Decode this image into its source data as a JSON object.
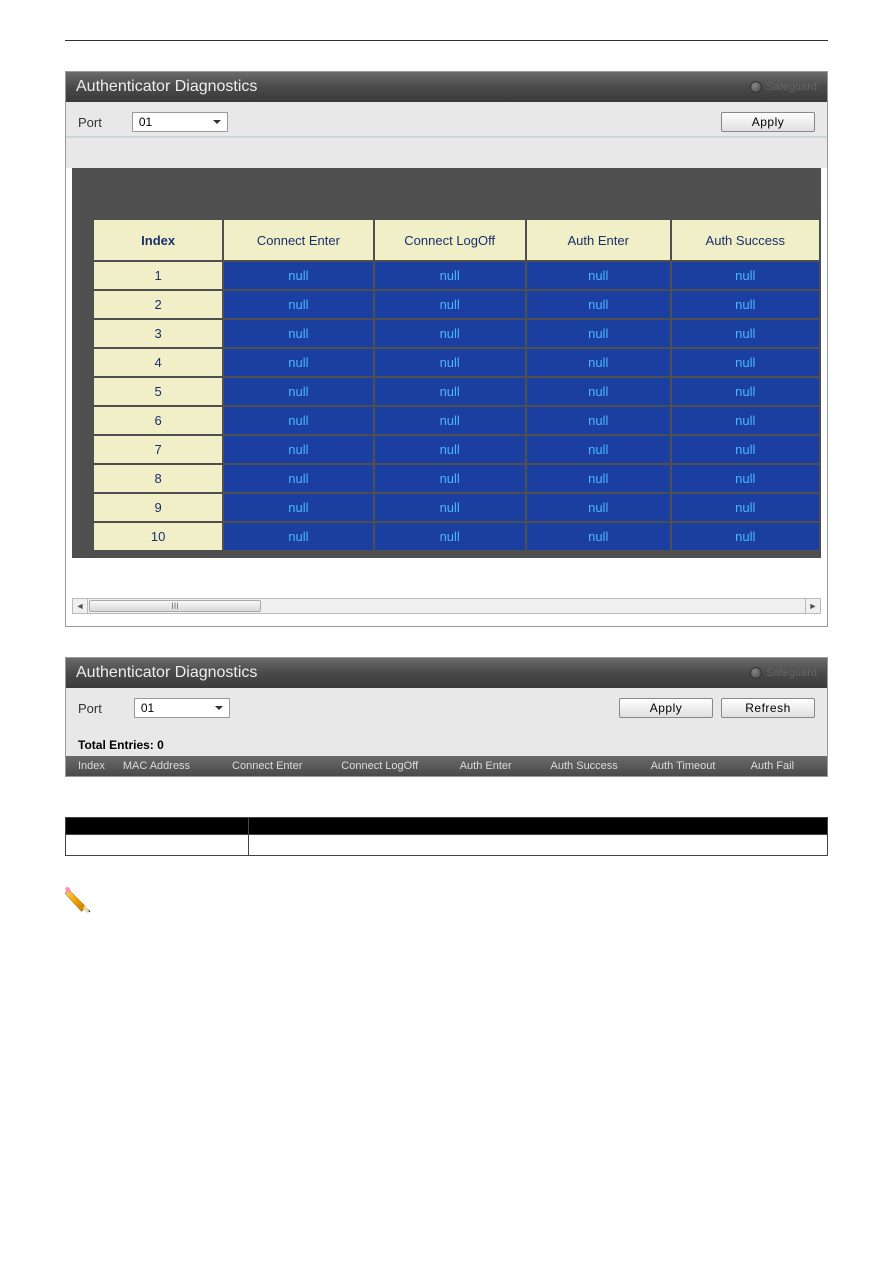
{
  "header": {
    "title": "Authenticator Diagnostics",
    "safeguard_label": "Safeguard"
  },
  "toolbar1": {
    "port_label": "Port",
    "port_value": "01",
    "apply_label": "Apply"
  },
  "diag_table": {
    "header_bg": "#f0efc8",
    "header_fg": "#1b2f6b",
    "cell_bg": "#1b3fa0",
    "cell_fg": "#4bb4ff",
    "col_index": "Index",
    "columns": [
      "Connect Enter",
      "Connect LogOff",
      "Auth Enter",
      "Auth Success"
    ],
    "rows": [
      {
        "index": "1",
        "values": [
          "null",
          "null",
          "null",
          "null"
        ]
      },
      {
        "index": "2",
        "values": [
          "null",
          "null",
          "null",
          "null"
        ]
      },
      {
        "index": "3",
        "values": [
          "null",
          "null",
          "null",
          "null"
        ]
      },
      {
        "index": "4",
        "values": [
          "null",
          "null",
          "null",
          "null"
        ]
      },
      {
        "index": "5",
        "values": [
          "null",
          "null",
          "null",
          "null"
        ]
      },
      {
        "index": "6",
        "values": [
          "null",
          "null",
          "null",
          "null"
        ]
      },
      {
        "index": "7",
        "values": [
          "null",
          "null",
          "null",
          "null"
        ]
      },
      {
        "index": "8",
        "values": [
          "null",
          "null",
          "null",
          "null"
        ]
      },
      {
        "index": "9",
        "values": [
          "null",
          "null",
          "null",
          "null"
        ]
      },
      {
        "index": "10",
        "values": [
          "null",
          "null",
          "null",
          "null"
        ]
      }
    ]
  },
  "scrollbar": {
    "thumb_label": "III",
    "left_glyph": "◄",
    "right_glyph": "►"
  },
  "toolbar2": {
    "port_label": "Port",
    "port_value": "01",
    "apply_label": "Apply",
    "refresh_label": "Refresh"
  },
  "entries": {
    "label": "Total Entries: 0"
  },
  "list_header": {
    "columns": [
      "Index",
      "MAC Address",
      "Connect Enter",
      "Connect LogOff",
      "Auth Enter",
      "Auth Success",
      "Auth Timeout",
      "Auth Fail"
    ],
    "widths": [
      40,
      110,
      110,
      120,
      90,
      100,
      100,
      70
    ]
  },
  "param_table": {
    "headers": [
      "",
      ""
    ],
    "row": [
      "",
      ""
    ]
  },
  "note": {
    "text": ""
  }
}
